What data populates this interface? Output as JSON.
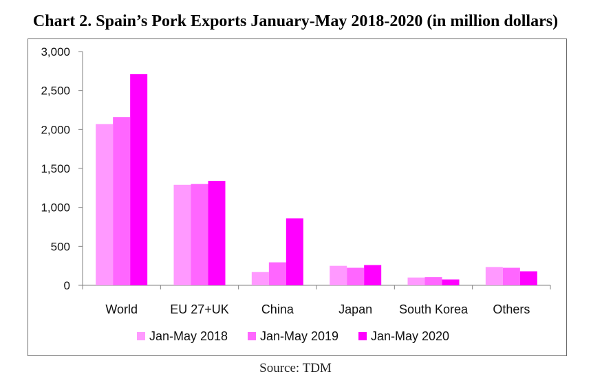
{
  "title": "Chart 2. Spain’s Pork Exports January-May 2018-2020 (in million dollars)",
  "source": "Source: TDM",
  "chart_data": {
    "type": "bar",
    "title": "Chart 2. Spain’s Pork Exports January-May 2018-2020 (in million dollars)",
    "xlabel": "",
    "ylabel": "",
    "categories": [
      "World",
      "EU 27+UK",
      "China",
      "Japan",
      "South Korea",
      "Others"
    ],
    "series": [
      {
        "name": "Jan-May 2018",
        "color": "#ff99ff",
        "values": [
          2070,
          1290,
          170,
          250,
          100,
          235
        ]
      },
      {
        "name": "Jan-May 2019",
        "color": "#ff66ff",
        "values": [
          2160,
          1300,
          295,
          225,
          105,
          225
        ]
      },
      {
        "name": "Jan-May 2020",
        "color": "#ff00ff",
        "values": [
          2710,
          1340,
          860,
          260,
          75,
          180
        ]
      }
    ],
    "ylim": [
      0,
      3000
    ],
    "yticks": [
      0,
      500,
      1000,
      1500,
      2000,
      2500,
      3000
    ],
    "ytick_labels": [
      "0",
      "500",
      "1,000",
      "1,500",
      "2,000",
      "2,500",
      "3,000"
    ],
    "grid": false,
    "legend_position": "bottom"
  }
}
